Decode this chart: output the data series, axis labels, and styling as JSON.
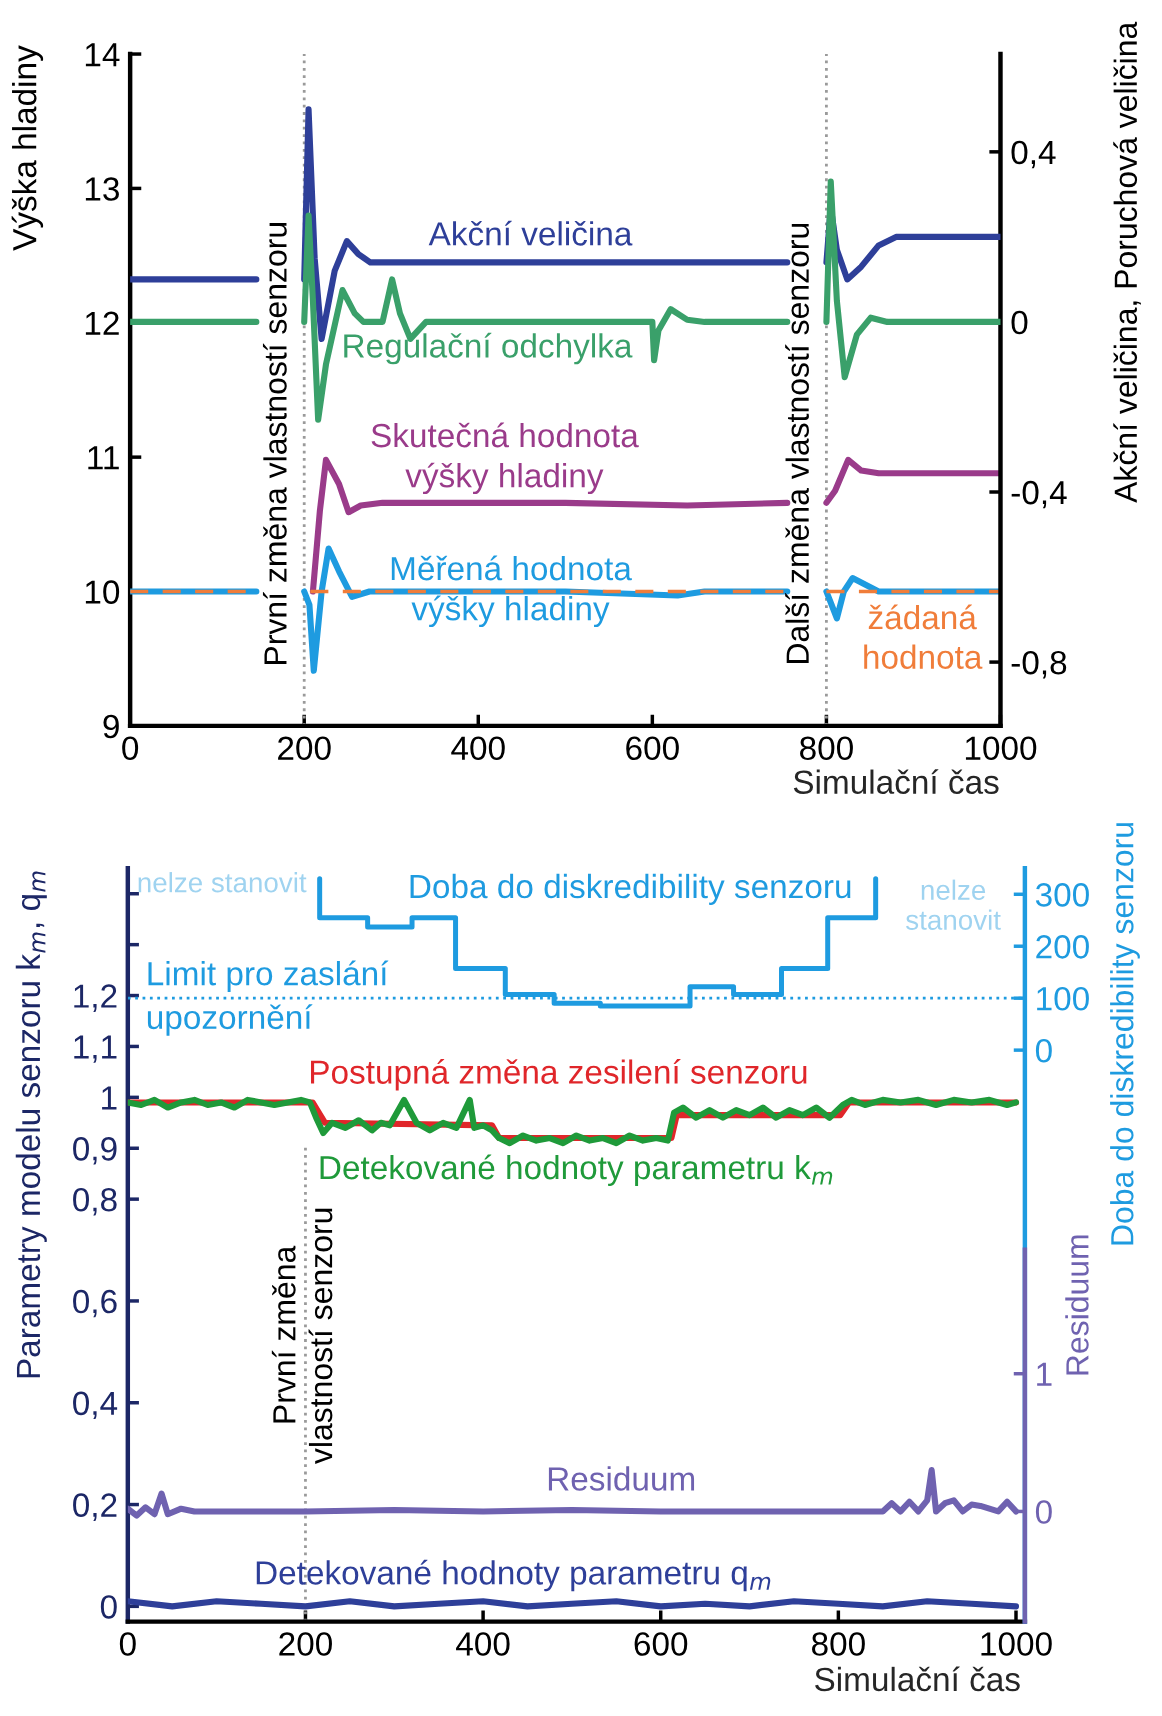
{
  "chart_data": [
    {
      "type": "line",
      "xlabel": "Simulační čas",
      "ylabel": "Výška hladiny",
      "y2label": "Akční veličina, Poruchová veličina",
      "xlim": [
        0,
        1000
      ],
      "xticks": [
        0,
        200,
        400,
        600,
        800,
        1000
      ],
      "ylim": [
        9,
        14
      ],
      "yticks": [
        9,
        10,
        11,
        12,
        13,
        14
      ],
      "y2lim": [
        -0.95,
        0.63
      ],
      "y2ticks": [
        {
          "value": -0.8,
          "label": "-0,8"
        },
        {
          "value": -0.4,
          "label": "-0,4"
        },
        0,
        {
          "value": 0.4,
          "label": "0,4"
        }
      ],
      "ref_lines": [
        {
          "axis": "x",
          "value": 200,
          "label": "První změna vlastností senzoru",
          "color": "#9a9a9a",
          "line_style": "dotted"
        },
        {
          "axis": "x",
          "value": 800,
          "label": "Další změna vlastností senzoru",
          "color": "#9a9a9a",
          "line_style": "dotted"
        }
      ],
      "series": [
        {
          "name": "Akční veličina",
          "color": "#2e3f99",
          "axis": "y2",
          "x": [
            0,
            145,
            170,
            200,
            205,
            212,
            220,
            235,
            249,
            262,
            276,
            300,
            500,
            700,
            755,
            780,
            800,
            805,
            812,
            824,
            840,
            860,
            880,
            1000
          ],
          "values": [
            0.1,
            0.1,
            null,
            0.1,
            0.5,
            0.15,
            -0.04,
            0.12,
            0.19,
            0.16,
            0.14,
            0.14,
            0.14,
            0.14,
            0.14,
            null,
            0.14,
            0.27,
            0.17,
            0.1,
            0.13,
            0.18,
            0.2,
            0.2
          ]
        },
        {
          "name": "Regulační odchylka",
          "color": "#3aa06a",
          "axis": "y2",
          "x": [
            0,
            145,
            170,
            200,
            205,
            210,
            216,
            225,
            244,
            258,
            268,
            290,
            301,
            310,
            322,
            340,
            500,
            600,
            602,
            607,
            621,
            640,
            660,
            755,
            780,
            800,
            805,
            812,
            821,
            835,
            851,
            870,
            1000
          ],
          "values": [
            0,
            0,
            null,
            0,
            0.25,
            0.05,
            -0.23,
            -0.1,
            0.075,
            0.02,
            0,
            0,
            0.1,
            0.02,
            -0.04,
            0,
            0,
            0,
            -0.09,
            -0.02,
            0.03,
            0.005,
            0,
            0,
            null,
            0,
            0.33,
            0.05,
            -0.13,
            -0.03,
            0.01,
            0,
            0
          ]
        },
        {
          "name": "Skutečná hodnota\nvýšky hladiny",
          "color": "#9a3b8a",
          "x": [
            210,
            218,
            225,
            240,
            251,
            265,
            290,
            500,
            640,
            755,
            780,
            800,
            810,
            825,
            840,
            860,
            1000
          ],
          "values": [
            10.0,
            10.6,
            10.98,
            10.8,
            10.59,
            10.64,
            10.66,
            10.66,
            10.64,
            10.66,
            null,
            10.66,
            10.75,
            10.98,
            10.9,
            10.88,
            10.88
          ]
        },
        {
          "name": "Měřená hodnota\nvýšky hladiny",
          "color": "#1e9be0",
          "x": [
            0,
            145,
            170,
            200,
            206,
            211,
            220,
            228,
            240,
            255,
            275,
            500,
            629,
            660,
            755,
            780,
            800,
            806,
            812,
            820,
            830,
            845,
            860,
            1000
          ],
          "values": [
            10,
            10,
            null,
            10,
            9.9,
            9.41,
            10.0,
            10.32,
            10.15,
            9.96,
            10.0,
            10.0,
            9.97,
            10.0,
            10.0,
            null,
            10.0,
            9.9,
            9.8,
            10.0,
            10.1,
            10.05,
            10.0,
            10.0
          ]
        },
        {
          "name": "žádaná\nhodnota",
          "color": "#f07d3a",
          "line_style": "dashed",
          "x": [
            0,
            145,
            170,
            207,
            755,
            780,
            800,
            1000
          ],
          "values": [
            10,
            10,
            null,
            10,
            10,
            null,
            10,
            10
          ]
        }
      ]
    },
    {
      "type": "line",
      "xlabel": "Simulační čas",
      "ylabel": "Parametry modelu senzoru k$_{m}$, q$_{m}$",
      "y2label": "Doba do diskredibility senzoru",
      "y3label": "Residuum",
      "xlim": [
        0,
        1010
      ],
      "xticks": [
        0,
        200,
        400,
        600,
        800,
        1000
      ],
      "ylim": [
        -0.03,
        1.45
      ],
      "yticks": [
        0,
        {
          "value": 0.2,
          "label": "0,2"
        },
        {
          "value": 0.4,
          "label": "0,4"
        },
        {
          "value": 0.6,
          "label": "0,6"
        },
        {
          "value": 0.8,
          "label": "0,8"
        },
        {
          "value": 0.9,
          "label": "0,9"
        },
        1,
        {
          "value": 1.1,
          "label": "1,1"
        },
        {
          "value": 1.2,
          "label": "1,2"
        },
        {
          "value": 1.3,
          "label": null
        },
        {
          "value": 1.4,
          "label": null
        }
      ],
      "y2lim": [
        -1100,
        350
      ],
      "y2ticks": [
        0,
        100,
        200,
        300
      ],
      "y3lim": [
        -0.8,
        4.67
      ],
      "y3ticks": [
        0,
        1
      ],
      "ref_lines": [
        {
          "axis": "x",
          "value": 200,
          "label": "První změna\nvlastností senzoru",
          "color": "#9a9a9a",
          "line_style": "dotted"
        },
        {
          "axis": "y2",
          "value": 100,
          "label": "Limit pro zaslání\nupozornění",
          "color": "#1e9be0",
          "line_style": "dotted"
        }
      ],
      "annotations": [
        "nelze stanovit",
        "nelze\nstanovit"
      ],
      "series": [
        {
          "name": "Doba do diskredibility senzoru",
          "type": "step",
          "color": "#1e9be0",
          "axis": "y2",
          "x": [
            216,
            216,
            270,
            320,
            369,
            425,
            480,
            532,
            633,
            682,
            736,
            788,
            842,
            842
          ],
          "values": [
            330,
            255,
            237,
            255,
            157,
            107,
            90,
            85,
            122,
            107,
            157,
            255,
            255,
            330
          ]
        },
        {
          "name": "Postupná změna zesilení senzoru",
          "color": "#e0262a",
          "x": [
            0,
            208,
            222,
            410,
            418,
            612,
            618,
            802,
            812,
            1000
          ],
          "values": [
            0.99,
            0.99,
            0.95,
            0.945,
            0.92,
            0.92,
            0.965,
            0.965,
            0.99,
            0.99
          ]
        },
        {
          "name": "Detekované hodnoty parametru k$_{m}$",
          "color": "#1f9a3a",
          "x": [
            0,
            15,
            30,
            45,
            60,
            75,
            90,
            105,
            120,
            135,
            150,
            165,
            180,
            195,
            205,
            212,
            220,
            230,
            245,
            260,
            275,
            285,
            295,
            311,
            325,
            340,
            355,
            370,
            385,
            390,
            400,
            410,
            418,
            430,
            445,
            460,
            475,
            490,
            505,
            520,
            535,
            550,
            565,
            580,
            595,
            608,
            615,
            625,
            640,
            655,
            670,
            685,
            700,
            715,
            730,
            745,
            760,
            775,
            790,
            805,
            815,
            830,
            850,
            870,
            890,
            910,
            930,
            950,
            970,
            990,
            1000
          ],
          "values": [
            0.99,
            0.985,
            0.995,
            0.98,
            0.99,
            0.995,
            0.985,
            0.99,
            0.98,
            0.995,
            0.99,
            0.985,
            0.99,
            0.995,
            0.99,
            0.96,
            0.93,
            0.95,
            0.94,
            0.955,
            0.935,
            0.95,
            0.945,
            0.995,
            0.95,
            0.935,
            0.95,
            0.94,
            0.995,
            0.94,
            0.945,
            0.935,
            0.92,
            0.91,
            0.925,
            0.915,
            0.92,
            0.91,
            0.925,
            0.915,
            0.92,
            0.91,
            0.925,
            0.915,
            0.92,
            0.915,
            0.97,
            0.98,
            0.96,
            0.975,
            0.96,
            0.975,
            0.965,
            0.98,
            0.96,
            0.975,
            0.965,
            0.98,
            0.96,
            0.985,
            0.995,
            0.985,
            0.995,
            0.99,
            0.995,
            0.985,
            0.995,
            0.99,
            0.995,
            0.985,
            0.99
          ]
        },
        {
          "name": "Detekované hodnoty parametru q$_{m}$",
          "color": "#2e3f99",
          "x": [
            0,
            50,
            100,
            150,
            200,
            250,
            300,
            350,
            400,
            450,
            500,
            550,
            600,
            650,
            700,
            750,
            800,
            850,
            900,
            950,
            1000
          ],
          "values": [
            0.01,
            0.0,
            0.01,
            0.005,
            0.0,
            0.01,
            0.0,
            0.005,
            0.01,
            0.0,
            0.005,
            0.01,
            0.0,
            0.005,
            0.0,
            0.01,
            0.005,
            0.0,
            0.01,
            0.005,
            0.0
          ]
        },
        {
          "name": "Residuum",
          "color": "#6f62b0",
          "axis": "y3",
          "x": [
            0,
            10,
            20,
            30,
            38,
            45,
            60,
            75,
            100,
            200,
            300,
            400,
            500,
            600,
            700,
            800,
            850,
            860,
            870,
            880,
            890,
            900,
            905,
            910,
            920,
            930,
            940,
            950,
            960,
            980,
            990,
            1000
          ],
          "values": [
            0.02,
            -0.03,
            0.03,
            -0.02,
            0.13,
            -0.02,
            0.02,
            0,
            0,
            0,
            0.01,
            0,
            0.01,
            0,
            0,
            0,
            0,
            0.06,
            0,
            0.07,
            0,
            0.08,
            0.3,
            0,
            0.06,
            0.08,
            0,
            0.05,
            0.04,
            0,
            0.07,
            0
          ]
        }
      ]
    }
  ]
}
